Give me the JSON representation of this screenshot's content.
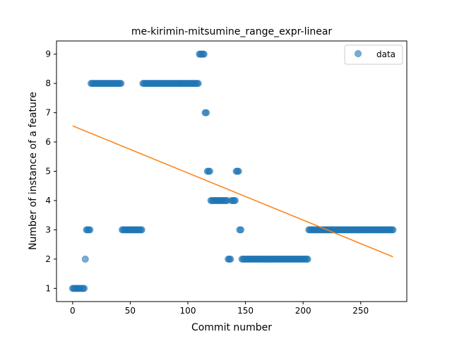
{
  "chart_data": {
    "type": "scatter",
    "title": "me-kirimin-mitsumine_range_expr-linear",
    "xlabel": "Commit number",
    "ylabel": "Number of instance of a feature",
    "xlim": [
      -14,
      290
    ],
    "ylim": [
      0.55,
      9.45
    ],
    "xticks": [
      0,
      50,
      100,
      150,
      200,
      250
    ],
    "yticks": [
      1,
      2,
      3,
      4,
      5,
      6,
      7,
      8,
      9
    ],
    "grid": false,
    "legend": {
      "position": "top-right",
      "entries": [
        "data"
      ]
    },
    "colors": {
      "scatter": "#1f77b4",
      "fit": "#ff7f0e"
    },
    "scatter_runs": [
      {
        "x_from": 0,
        "x_to": 10,
        "y": 1
      },
      {
        "x_from": 11,
        "x_to": 11,
        "y": 2
      },
      {
        "x_from": 12,
        "x_to": 15,
        "y": 3
      },
      {
        "x_from": 16,
        "x_to": 42,
        "y": 8
      },
      {
        "x_from": 43,
        "x_to": 60,
        "y": 3
      },
      {
        "x_from": 61,
        "x_to": 109,
        "y": 8
      },
      {
        "x_from": 110,
        "x_to": 114,
        "y": 9
      },
      {
        "x_from": 115,
        "x_to": 116,
        "y": 7
      },
      {
        "x_from": 117,
        "x_to": 119,
        "y": 5
      },
      {
        "x_from": 120,
        "x_to": 134,
        "y": 4
      },
      {
        "x_from": 135,
        "x_to": 137,
        "y": 2
      },
      {
        "x_from": 138,
        "x_to": 141,
        "y": 4
      },
      {
        "x_from": 142,
        "x_to": 144,
        "y": 5
      },
      {
        "x_from": 145,
        "x_to": 146,
        "y": 3
      },
      {
        "x_from": 147,
        "x_to": 204,
        "y": 2
      },
      {
        "x_from": 205,
        "x_to": 278,
        "y": 3
      }
    ],
    "fit_line": {
      "x": [
        0,
        278
      ],
      "y": [
        6.55,
        2.08
      ]
    }
  }
}
